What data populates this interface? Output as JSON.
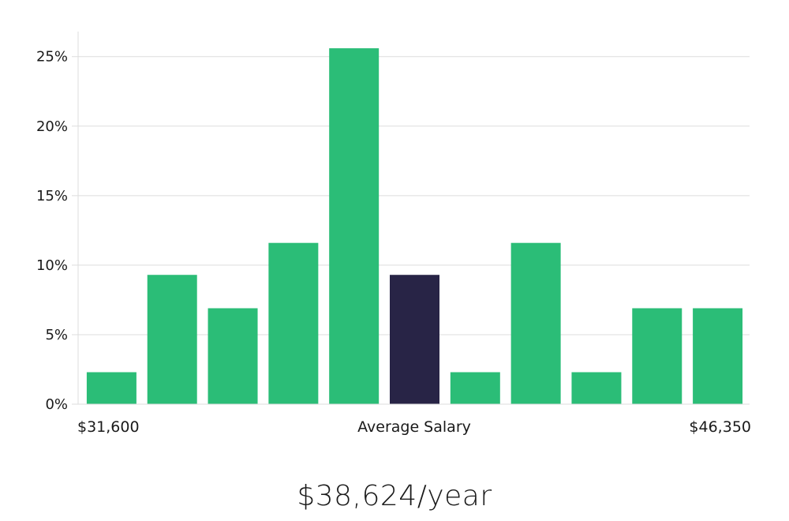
{
  "chart_data": {
    "type": "bar",
    "categories": [
      "1",
      "2",
      "3",
      "4",
      "5",
      "6",
      "7",
      "8",
      "9",
      "10",
      "11"
    ],
    "values": [
      2.3,
      9.3,
      6.9,
      11.6,
      25.6,
      9.3,
      2.3,
      11.6,
      2.3,
      6.9,
      6.9
    ],
    "highlight_index": 5,
    "ylim": [
      0,
      26.8
    ],
    "yticks": [
      0,
      5,
      10,
      15,
      20,
      25
    ],
    "ytick_labels": [
      "0%",
      "5%",
      "10%",
      "15%",
      "20%",
      "25%"
    ],
    "x_labels": {
      "left": "$31,600",
      "center": "Average Salary",
      "right": "$46,350"
    },
    "grid": true,
    "colors": {
      "bar": "#2bbd77",
      "highlight": "#282446",
      "grid": "#dddddd",
      "axis": "#dddddd"
    }
  },
  "summary": {
    "average_salary": "$38,624/year"
  }
}
